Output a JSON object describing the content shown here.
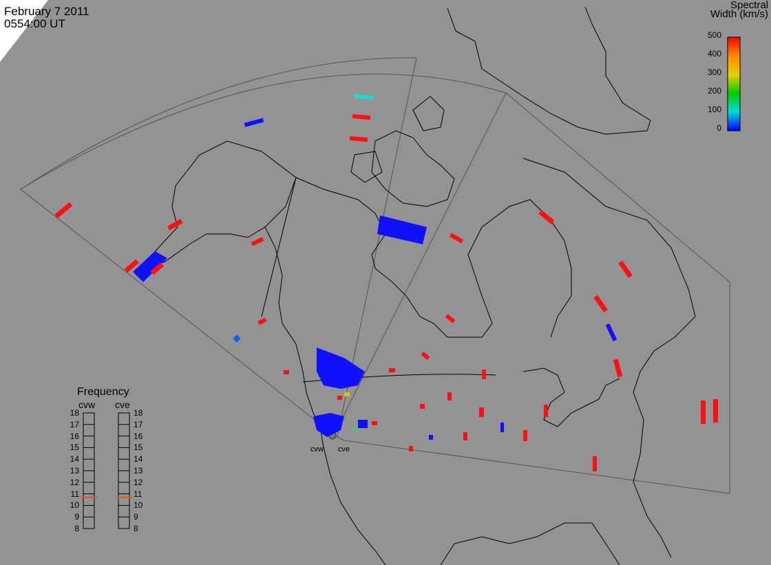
{
  "header": {
    "date": "February  7 2011",
    "time": "0554:00 UT"
  },
  "colorbar": {
    "title_line1": "Spectral",
    "title_line2": "Width (km/s)",
    "ticks": [
      "500",
      "400",
      "300",
      "200",
      "100",
      "0"
    ],
    "range": [
      0,
      500
    ],
    "gradient": [
      "#ff0000",
      "#ff8a00",
      "#e8d000",
      "#00cc00",
      "#00d8d8",
      "#0000ff"
    ]
  },
  "frequency": {
    "title": "Frequency",
    "radars": [
      "cvw",
      "cve"
    ],
    "scale": [
      "18",
      "17",
      "16",
      "15",
      "14",
      "13",
      "12",
      "11",
      "10",
      "9",
      "8"
    ],
    "cvw_value": 10.7,
    "cve_value": 10.7,
    "marker_color": "#e8541c"
  },
  "map": {
    "radar_labels": [
      "cvw",
      "cve"
    ],
    "land_color": "#939393",
    "fov_line_color": "#444444",
    "coast_color": "#000000"
  }
}
